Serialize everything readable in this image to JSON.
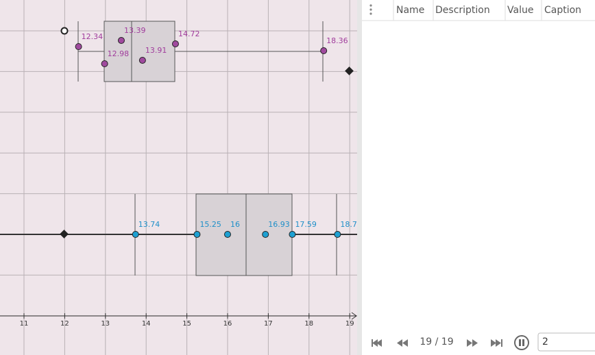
{
  "graphics": {
    "x_ticks": [
      11,
      12,
      13,
      14,
      15,
      16,
      17,
      18,
      19
    ],
    "boxplots": [
      {
        "points": [
          12.34,
          13.39,
          12.98,
          13.91,
          14.72,
          18.36
        ]
      },
      {
        "points": [
          13.74,
          15.25,
          16,
          16.93,
          17.59,
          18.7
        ]
      }
    ]
  },
  "table": {
    "headers": [
      "Name",
      "Description",
      "Value",
      "Caption"
    ]
  },
  "player": {
    "counter": "19 / 19",
    "input": "2"
  }
}
